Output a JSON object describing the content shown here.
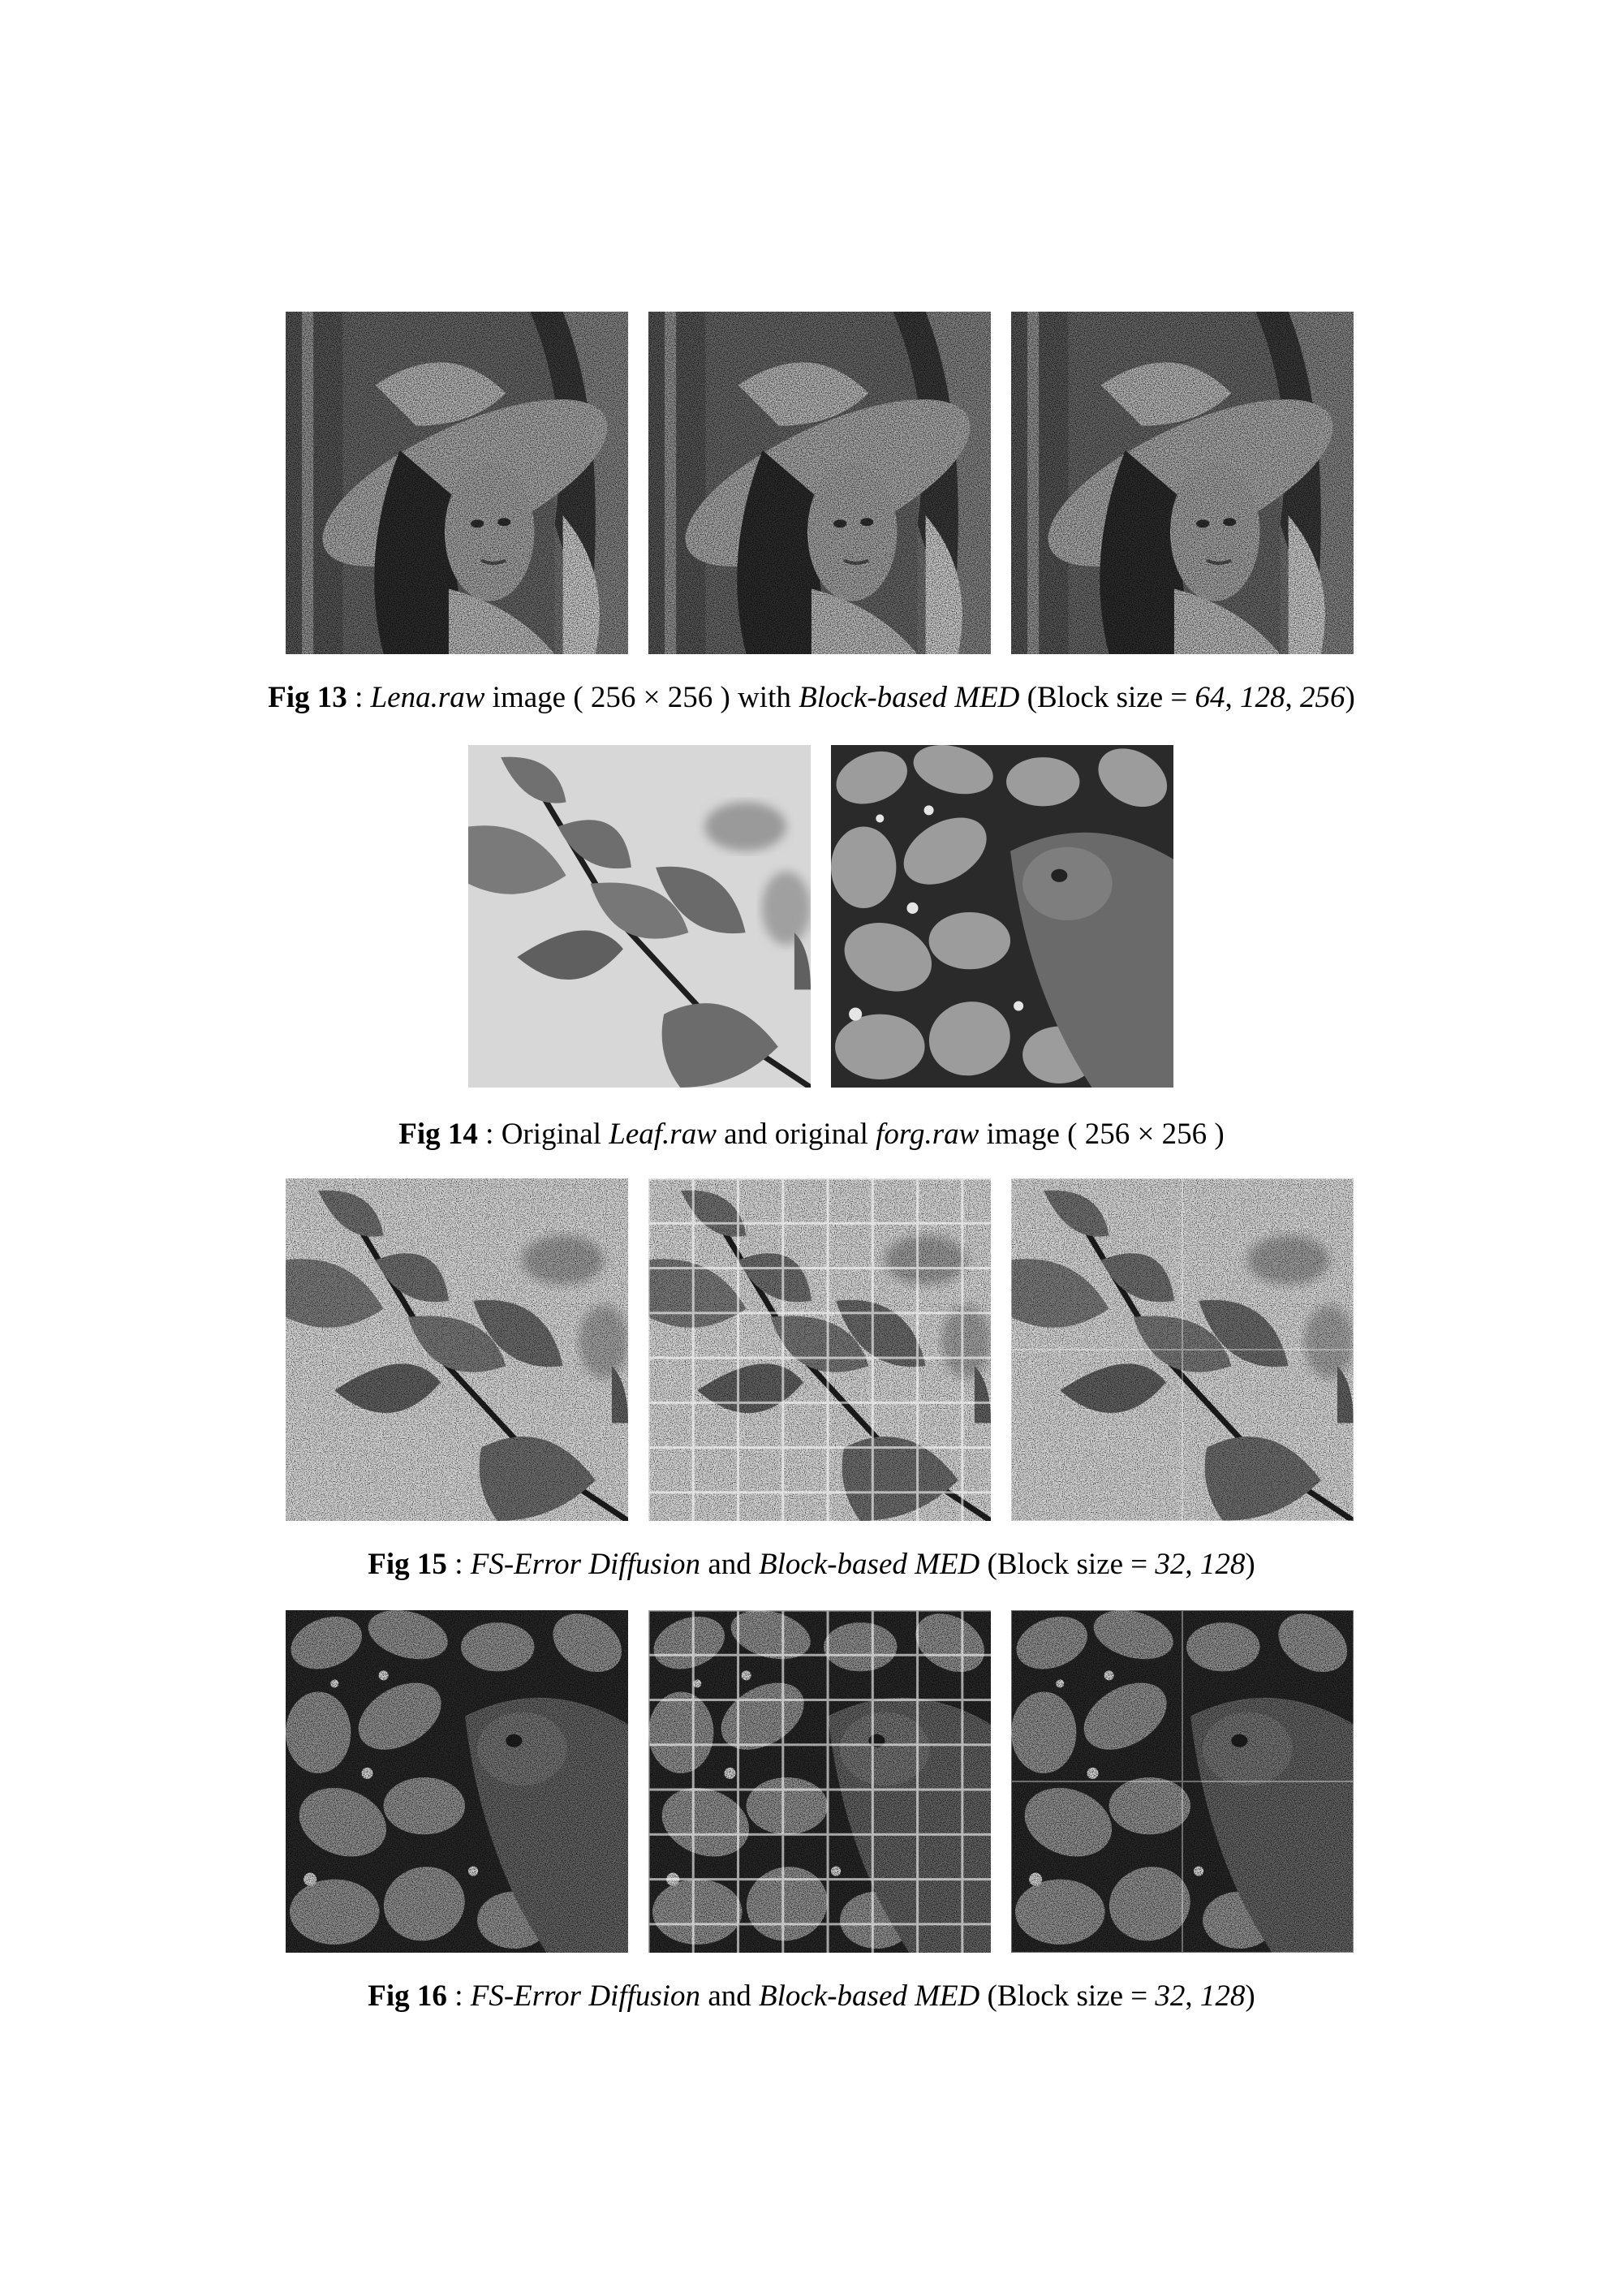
{
  "figures": [
    {
      "label": "Fig 13",
      "caption_parts": [
        {
          "t": " : ",
          "s": "n"
        },
        {
          "t": "Lena.raw",
          "s": "i"
        },
        {
          "t": " image ( 256 × 256 ) with ",
          "s": "n"
        },
        {
          "t": "Block-based MED",
          "s": "i"
        },
        {
          "t": " (Block size = ",
          "s": "n"
        },
        {
          "t": "64",
          "s": "i"
        },
        {
          "t": ", ",
          "s": "n"
        },
        {
          "t": "128",
          "s": "i"
        },
        {
          "t": ", ",
          "s": "n"
        },
        {
          "t": "256",
          "s": "i"
        },
        {
          "t": ")",
          "s": "n"
        }
      ]
    },
    {
      "label": "Fig 14",
      "caption_parts": [
        {
          "t": " : Original ",
          "s": "n"
        },
        {
          "t": "Leaf.raw",
          "s": "i"
        },
        {
          "t": " and original ",
          "s": "n"
        },
        {
          "t": "forg.raw",
          "s": "i"
        },
        {
          "t": " image ( 256 × 256 )",
          "s": "n"
        }
      ]
    },
    {
      "label": "Fig 15",
      "caption_parts": [
        {
          "t": " : ",
          "s": "n"
        },
        {
          "t": "FS-Error Diffusion",
          "s": "i"
        },
        {
          "t": " and ",
          "s": "n"
        },
        {
          "t": "Block-based MED",
          "s": "i"
        },
        {
          "t": " (Block size = ",
          "s": "n"
        },
        {
          "t": "32",
          "s": "i"
        },
        {
          "t": ", ",
          "s": "n"
        },
        {
          "t": "128",
          "s": "i"
        },
        {
          "t": ")",
          "s": "n"
        }
      ]
    },
    {
      "label": "Fig 16",
      "caption_parts": [
        {
          "t": " : ",
          "s": "n"
        },
        {
          "t": "FS-Error Diffusion",
          "s": "i"
        },
        {
          "t": " and ",
          "s": "n"
        },
        {
          "t": "Block-based MED",
          "s": "i"
        },
        {
          "t": " (Block size = ",
          "s": "n"
        },
        {
          "t": "32",
          "s": "i"
        },
        {
          "t": ", ",
          "s": "n"
        },
        {
          "t": "128",
          "s": "i"
        },
        {
          "t": ")",
          "s": "n"
        }
      ]
    }
  ],
  "images": {
    "fig13": [
      "lena-halftone-block-64",
      "lena-halftone-block-128",
      "lena-halftone-block-256"
    ],
    "fig14": [
      "leaf-original",
      "frog-original"
    ],
    "fig15": [
      "leaf-fs-error-diffusion",
      "leaf-block-med-32",
      "leaf-block-med-128"
    ],
    "fig16": [
      "frog-fs-error-diffusion",
      "frog-block-med-32",
      "frog-block-med-128"
    ]
  }
}
